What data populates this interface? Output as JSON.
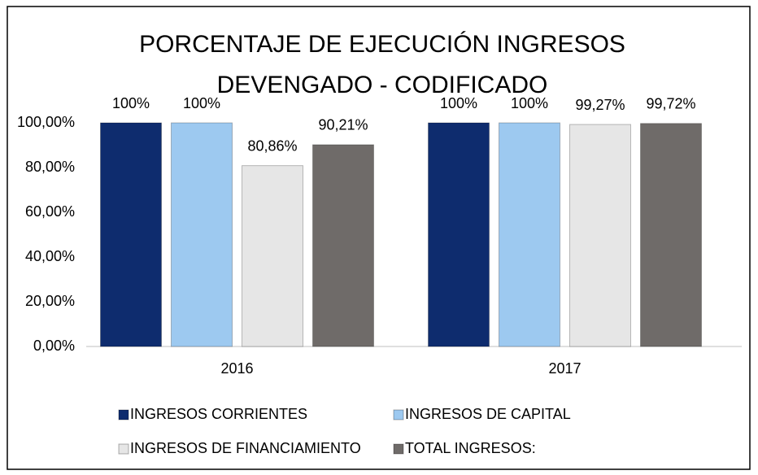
{
  "chart_data": {
    "type": "bar",
    "title": "PORCENTAJE DE EJECUCIÓN INGRESOS DEVENGADO - CODIFICADO",
    "categories": [
      "2016",
      "2017"
    ],
    "series": [
      {
        "name": "INGRESOS CORRIENTES",
        "color": "#0e2c6e",
        "values": [
          100,
          100
        ],
        "value_labels": [
          "100%",
          "100%"
        ]
      },
      {
        "name": "INGRESOS DE CAPITAL",
        "color": "#9dc9f0",
        "values": [
          100,
          100
        ],
        "value_labels": [
          "100%",
          "100%"
        ]
      },
      {
        "name": "INGRESOS DE FINANCIAMIENTO",
        "color": "#e6e6e6",
        "values": [
          80.86,
          99.27
        ],
        "value_labels": [
          "80,86%",
          "99,27%"
        ]
      },
      {
        "name": "TOTAL INGRESOS:",
        "color": "#6f6b69",
        "values": [
          90.21,
          99.72
        ],
        "value_labels": [
          "90,21%",
          "99,72%"
        ]
      }
    ],
    "ylim": [
      0,
      100
    ],
    "yticks": [
      {
        "value": 0,
        "label": "0,00%"
      },
      {
        "value": 20,
        "label": "20,00%"
      },
      {
        "value": 40,
        "label": "40,00%"
      },
      {
        "value": 60,
        "label": "60,00%"
      },
      {
        "value": 80,
        "label": "80,00%"
      },
      {
        "value": 100,
        "label": "100,00%"
      }
    ],
    "grid": false,
    "legend": "bottom"
  }
}
